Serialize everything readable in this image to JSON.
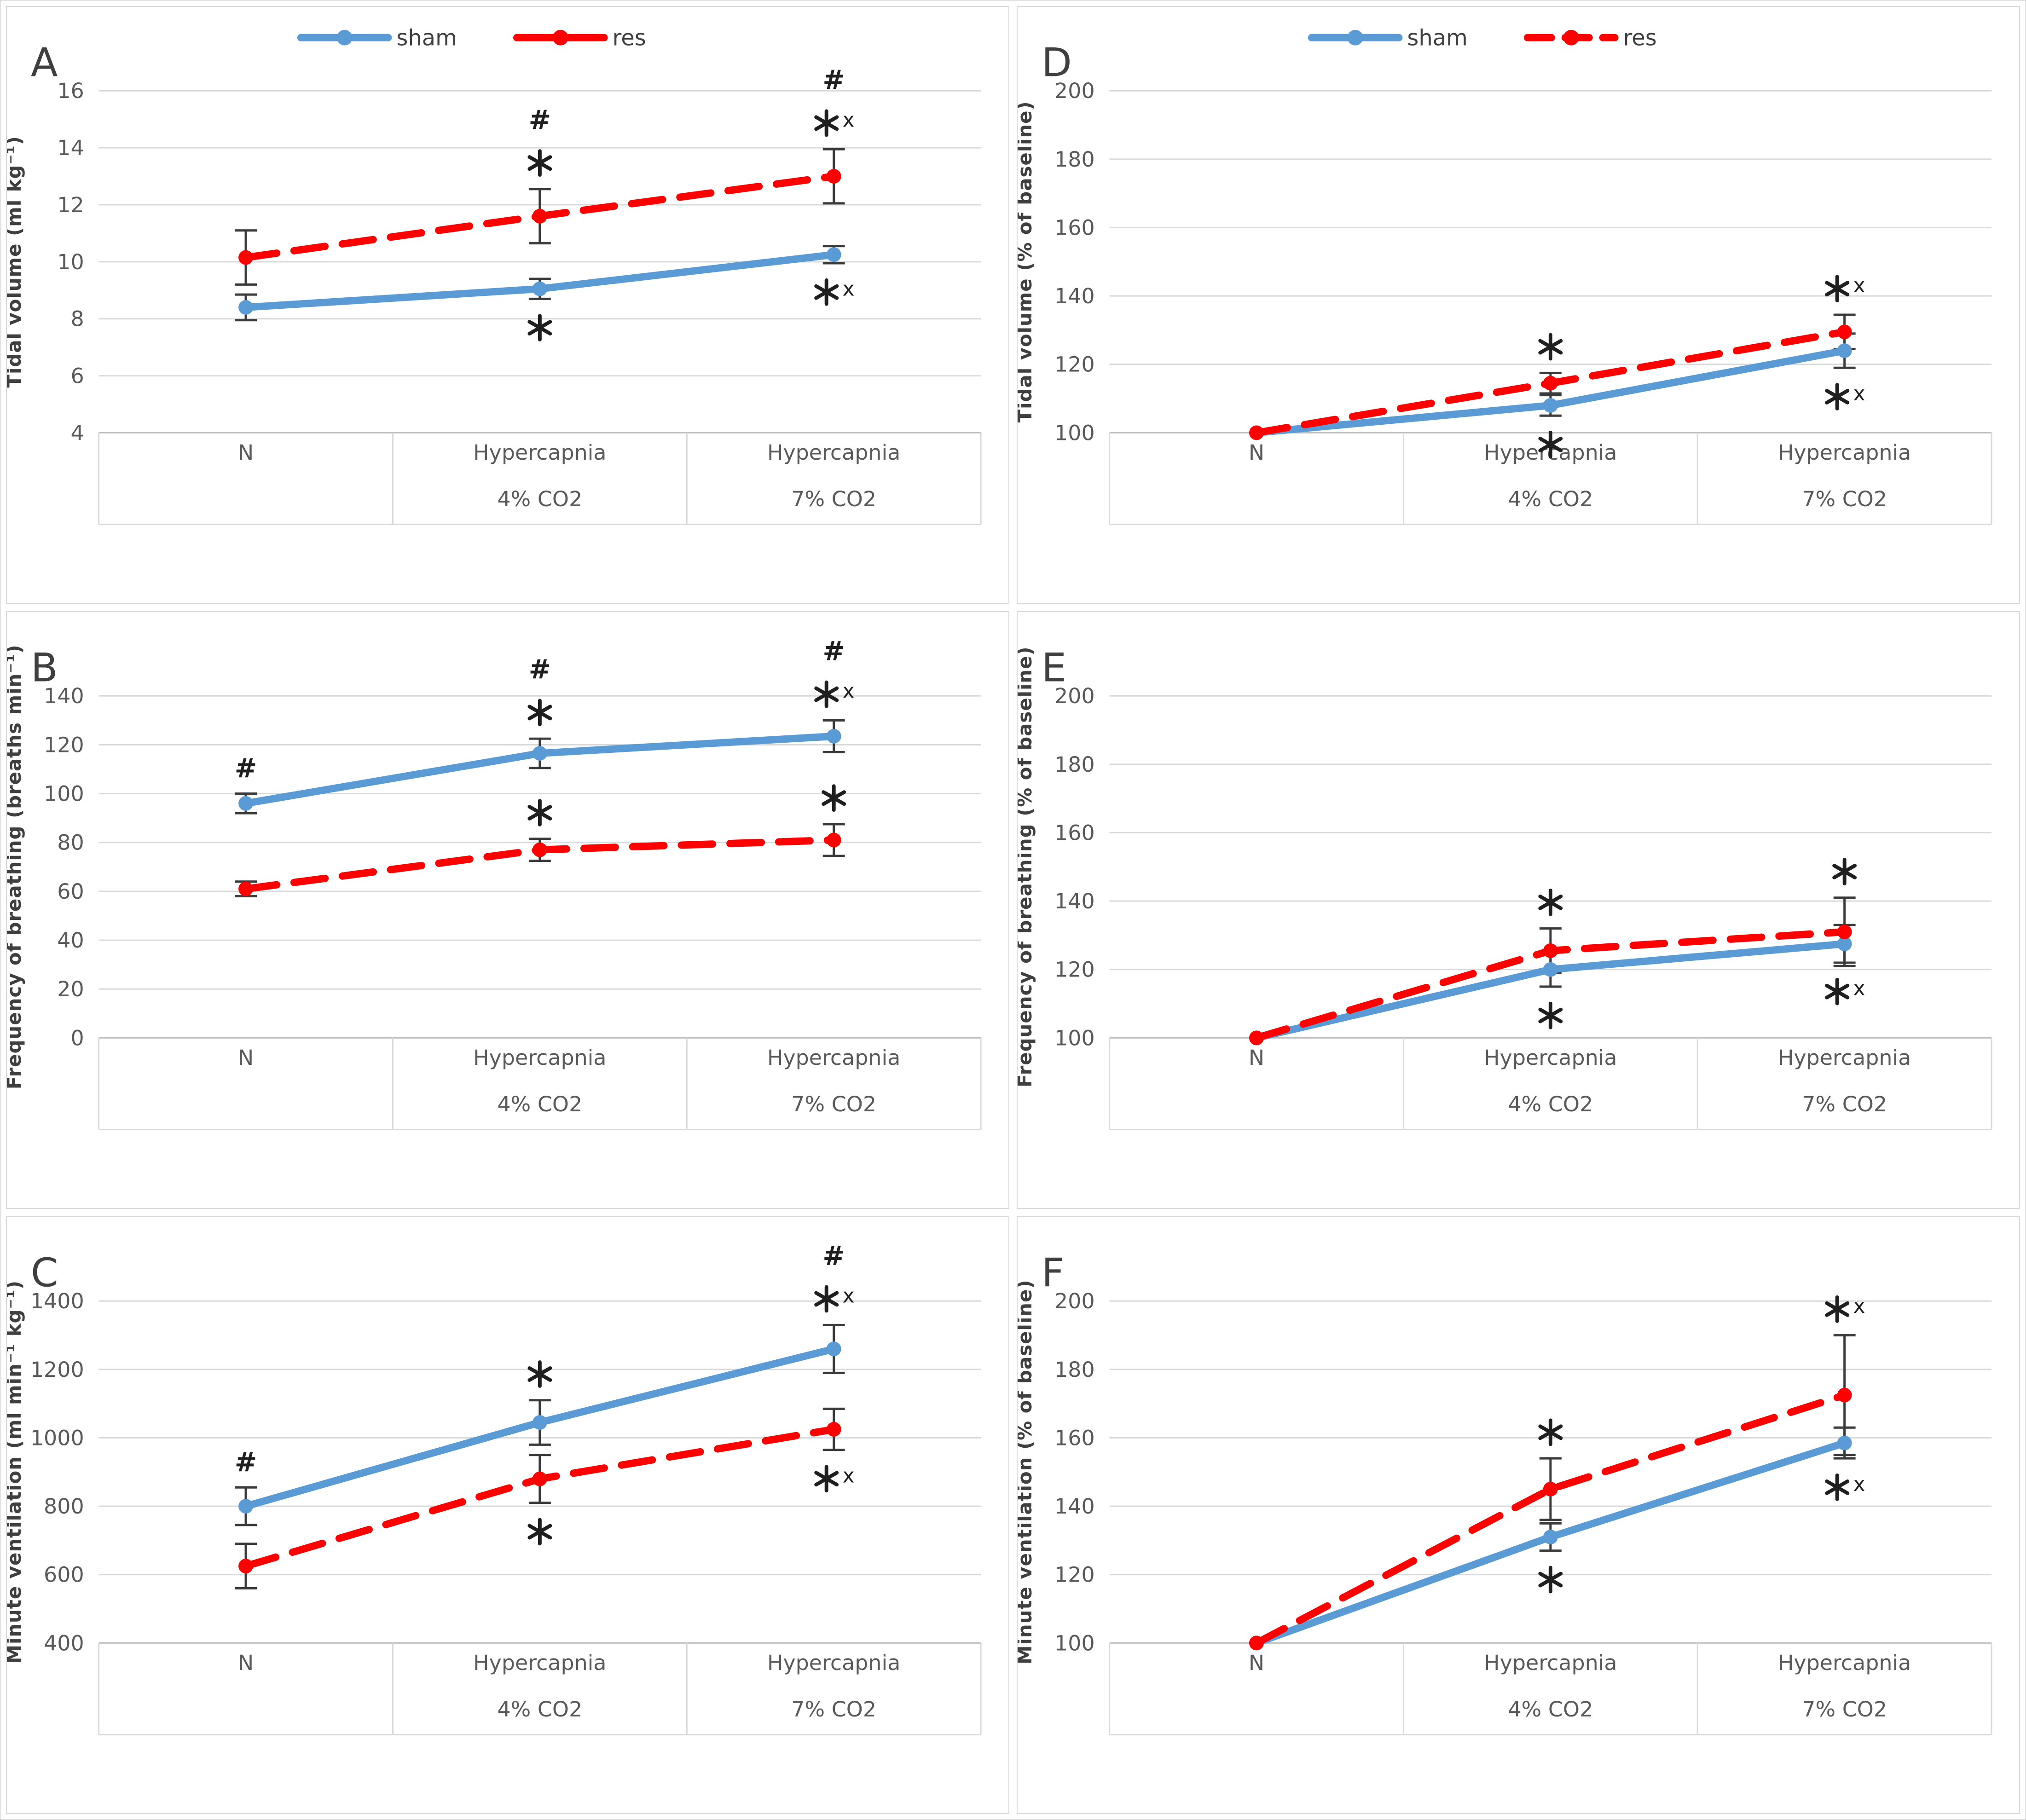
{
  "figure_title": "",
  "legend_labels": {
    "sham": "sham",
    "res": "res"
  },
  "colors": {
    "sham": "#5B9BD5",
    "res": "#FF0000",
    "gridline": "#D9D9D9",
    "axis_line": "#C0C0C0",
    "tick_text": "#595959",
    "label_text": "#3F3F3F",
    "error_bar": "#3A3A3A",
    "annotation": "#1F1F1F"
  },
  "chart_data": [
    {
      "type": "line",
      "panel": "A",
      "ylabel": "Tidal volume (ml kg⁻¹)",
      "xlabel": "",
      "ylim": [
        4,
        16
      ],
      "yticks": [
        4,
        6,
        8,
        10,
        12,
        14,
        16
      ],
      "grid": true,
      "categories": [
        "N",
        "Hypercapnia\n4% CO2",
        "Hypercapnia\n7% CO2"
      ],
      "legend": {
        "visible": true,
        "position": "top",
        "entries": [
          "sham",
          "res"
        ],
        "res_dashed_swatch": false
      },
      "series": [
        {
          "name": "sham",
          "color": "#5B9BD5",
          "line_style": "solid",
          "values": [
            8.4,
            9.05,
            10.25
          ],
          "errors": [
            0.45,
            0.35,
            0.3
          ]
        },
        {
          "name": "res",
          "color": "#FF0000",
          "line_style": "dashed",
          "values": [
            10.15,
            11.6,
            13.0
          ],
          "errors": [
            0.95,
            0.95,
            0.95
          ]
        }
      ],
      "annotations": [
        {
          "series": "res",
          "category_index": 1,
          "side": "above",
          "symbols": [
            "#",
            "*"
          ]
        },
        {
          "series": "sham",
          "category_index": 1,
          "side": "below",
          "symbols": [
            "*"
          ]
        },
        {
          "series": "res",
          "category_index": 2,
          "side": "above",
          "symbols": [
            "#",
            "*x"
          ]
        },
        {
          "series": "sham",
          "category_index": 2,
          "side": "below",
          "symbols": [
            "*x"
          ]
        }
      ]
    },
    {
      "type": "line",
      "panel": "B",
      "ylabel": "Frequency of breathing (breaths min⁻¹)",
      "xlabel": "",
      "ylim": [
        0,
        140
      ],
      "yticks": [
        0,
        20,
        40,
        60,
        80,
        100,
        120,
        140
      ],
      "grid": true,
      "categories": [
        "N",
        "Hypercapnia\n4% CO2",
        "Hypercapnia\n7% CO2"
      ],
      "legend": {
        "visible": false,
        "position": "top",
        "entries": [
          "sham",
          "res"
        ],
        "res_dashed_swatch": true
      },
      "series": [
        {
          "name": "sham",
          "color": "#5B9BD5",
          "line_style": "solid",
          "values": [
            96,
            116.5,
            123.5
          ],
          "errors": [
            4,
            6,
            6.5
          ]
        },
        {
          "name": "res",
          "color": "#FF0000",
          "line_style": "dashed",
          "values": [
            61,
            77,
            81
          ],
          "errors": [
            3,
            4.5,
            6.5
          ]
        }
      ],
      "annotations": [
        {
          "series": "sham",
          "category_index": 0,
          "side": "above",
          "symbols": [
            "#"
          ]
        },
        {
          "series": "sham",
          "category_index": 1,
          "side": "above",
          "symbols": [
            "#",
            "*"
          ]
        },
        {
          "series": "res",
          "category_index": 1,
          "side": "above",
          "symbols": [
            "*"
          ]
        },
        {
          "series": "sham",
          "category_index": 2,
          "side": "above",
          "symbols": [
            "#",
            "*x"
          ]
        },
        {
          "series": "res",
          "category_index": 2,
          "side": "above",
          "symbols": [
            "*"
          ]
        }
      ]
    },
    {
      "type": "line",
      "panel": "C",
      "ylabel": "Minute ventilation (ml min⁻¹ kg⁻¹)",
      "xlabel": "",
      "ylim": [
        400,
        1400
      ],
      "yticks": [
        400,
        600,
        800,
        1000,
        1200,
        1400
      ],
      "grid": true,
      "categories": [
        "N",
        "Hypercapnia\n4% CO2",
        "Hypercapnia\n7% CO2"
      ],
      "legend": {
        "visible": false,
        "position": "top",
        "entries": [
          "sham",
          "res"
        ],
        "res_dashed_swatch": true
      },
      "series": [
        {
          "name": "sham",
          "color": "#5B9BD5",
          "line_style": "solid",
          "values": [
            800,
            1045,
            1260
          ],
          "errors": [
            55,
            65,
            70
          ]
        },
        {
          "name": "res",
          "color": "#FF0000",
          "line_style": "dashed",
          "values": [
            625,
            880,
            1025
          ],
          "errors": [
            65,
            70,
            60
          ]
        }
      ],
      "annotations": [
        {
          "series": "sham",
          "category_index": 0,
          "side": "above",
          "symbols": [
            "#"
          ]
        },
        {
          "series": "sham",
          "category_index": 1,
          "side": "above",
          "symbols": [
            "*"
          ]
        },
        {
          "series": "res",
          "category_index": 1,
          "side": "below",
          "symbols": [
            "*"
          ]
        },
        {
          "series": "sham",
          "category_index": 2,
          "side": "above",
          "symbols": [
            "#",
            "*x"
          ]
        },
        {
          "series": "res",
          "category_index": 2,
          "side": "below",
          "symbols": [
            "*x"
          ]
        }
      ]
    },
    {
      "type": "line",
      "panel": "D",
      "ylabel": "Tidal volume (% of baseline)",
      "xlabel": "",
      "ylim": [
        100,
        200
      ],
      "yticks": [
        100,
        120,
        140,
        160,
        180,
        200
      ],
      "grid": true,
      "categories": [
        "N",
        "Hypercapnia\n4% CO2",
        "Hypercapnia\n7% CO2"
      ],
      "legend": {
        "visible": true,
        "position": "top",
        "entries": [
          "sham",
          "res"
        ],
        "res_dashed_swatch": true
      },
      "series": [
        {
          "name": "sham",
          "color": "#5B9BD5",
          "line_style": "solid",
          "values": [
            100,
            108,
            124
          ],
          "errors": [
            0,
            3,
            5
          ]
        },
        {
          "name": "res",
          "color": "#FF0000",
          "line_style": "dashed",
          "values": [
            100,
            114.5,
            129.5
          ],
          "errors": [
            0,
            3,
            5
          ]
        }
      ],
      "annotations": [
        {
          "series": "res",
          "category_index": 1,
          "side": "above",
          "symbols": [
            "*"
          ]
        },
        {
          "series": "sham",
          "category_index": 1,
          "side": "below",
          "symbols": [
            "*"
          ]
        },
        {
          "series": "res",
          "category_index": 2,
          "side": "above",
          "symbols": [
            "*x"
          ]
        },
        {
          "series": "sham",
          "category_index": 2,
          "side": "below",
          "symbols": [
            "*x"
          ]
        }
      ]
    },
    {
      "type": "line",
      "panel": "E",
      "ylabel": "Frequency of breathing (% of baseline)",
      "xlabel": "",
      "ylim": [
        100,
        200
      ],
      "yticks": [
        100,
        120,
        140,
        160,
        180,
        200
      ],
      "grid": true,
      "categories": [
        "N",
        "Hypercapnia\n4% CO2",
        "Hypercapnia\n7% CO2"
      ],
      "legend": {
        "visible": false,
        "position": "top",
        "entries": [
          "sham",
          "res"
        ],
        "res_dashed_swatch": true
      },
      "series": [
        {
          "name": "sham",
          "color": "#5B9BD5",
          "line_style": "solid",
          "values": [
            100,
            120,
            127.5
          ],
          "errors": [
            0,
            5,
            5.5
          ]
        },
        {
          "name": "res",
          "color": "#FF0000",
          "line_style": "dashed",
          "values": [
            100,
            125.5,
            131
          ],
          "errors": [
            0,
            6.5,
            10
          ]
        }
      ],
      "annotations": [
        {
          "series": "res",
          "category_index": 1,
          "side": "above",
          "symbols": [
            "*"
          ]
        },
        {
          "series": "sham",
          "category_index": 1,
          "side": "below",
          "symbols": [
            "*"
          ]
        },
        {
          "series": "res",
          "category_index": 2,
          "side": "above",
          "symbols": [
            "*"
          ]
        },
        {
          "series": "sham",
          "category_index": 2,
          "side": "below",
          "symbols": [
            "*x"
          ]
        }
      ]
    },
    {
      "type": "line",
      "panel": "F",
      "ylabel": "Minute ventilation (% of baseline)",
      "xlabel": "",
      "ylim": [
        100,
        200
      ],
      "yticks": [
        100,
        120,
        140,
        160,
        180,
        200
      ],
      "grid": true,
      "categories": [
        "N",
        "Hypercapnia\n4% CO2",
        "Hypercapnia\n7% CO2"
      ],
      "legend": {
        "visible": false,
        "position": "top",
        "entries": [
          "sham",
          "res"
        ],
        "res_dashed_swatch": true
      },
      "series": [
        {
          "name": "sham",
          "color": "#5B9BD5",
          "line_style": "solid",
          "values": [
            100,
            131,
            158.5
          ],
          "errors": [
            0,
            4,
            4.5
          ]
        },
        {
          "name": "res",
          "color": "#FF0000",
          "line_style": "dashed",
          "values": [
            100,
            145,
            172.5
          ],
          "errors": [
            0,
            9,
            17.5
          ]
        }
      ],
      "annotations": [
        {
          "series": "res",
          "category_index": 1,
          "side": "above",
          "symbols": [
            "*"
          ]
        },
        {
          "series": "sham",
          "category_index": 1,
          "side": "below",
          "symbols": [
            "*"
          ]
        },
        {
          "series": "res",
          "category_index": 2,
          "side": "above",
          "symbols": [
            "*x"
          ]
        },
        {
          "series": "sham",
          "category_index": 2,
          "side": "below",
          "symbols": [
            "*x"
          ]
        }
      ]
    }
  ]
}
